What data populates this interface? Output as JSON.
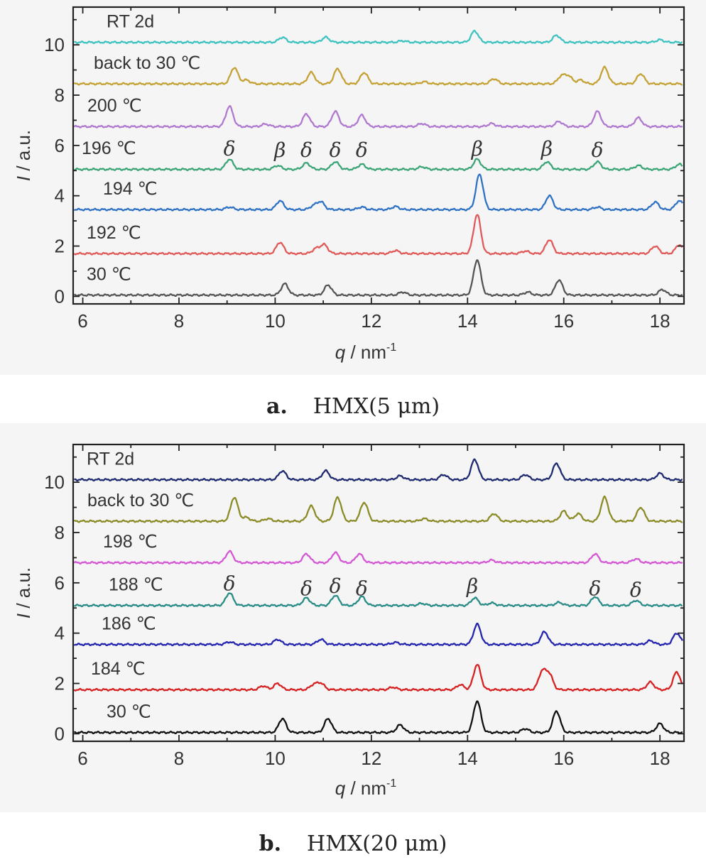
{
  "chart_data": [
    {
      "type": "line",
      "caption_letter": "a.",
      "caption_text": "HMX(5 μm)",
      "xlabel_var": "q",
      "xlabel_unit": " / nm",
      "xlabel_sup": "-1",
      "ylabel_var": "I",
      "ylabel_unit": " / a.u.",
      "xlim": [
        5.8,
        18.5
      ],
      "ylim": [
        -0.3,
        11.5
      ],
      "xticks": [
        6,
        8,
        10,
        12,
        14,
        16,
        18
      ],
      "yticks": [
        0,
        2,
        4,
        6,
        8,
        10
      ],
      "grid": false,
      "series": [
        {
          "name": "30 ℃",
          "color": "#555555",
          "offset": 0.05,
          "peaks": [
            [
              10.2,
              0.45
            ],
            [
              11.1,
              0.4
            ],
            [
              12.65,
              0.12
            ],
            [
              14.2,
              1.4
            ],
            [
              15.25,
              0.12
            ],
            [
              15.9,
              0.6
            ],
            [
              18.05,
              0.22
            ]
          ]
        },
        {
          "name": "192 ℃",
          "color": "#e05a5a",
          "offset": 1.7,
          "peaks": [
            [
              10.1,
              0.45
            ],
            [
              10.85,
              0.2
            ],
            [
              11.02,
              0.35
            ],
            [
              12.5,
              0.12
            ],
            [
              14.2,
              1.55
            ],
            [
              15.2,
              0.1
            ],
            [
              15.7,
              0.55
            ],
            [
              17.9,
              0.3
            ],
            [
              18.4,
              0.35
            ]
          ]
        },
        {
          "name": "194 ℃",
          "color": "#2f72c4",
          "offset": 3.45,
          "peaks": [
            [
              9.05,
              0.1
            ],
            [
              10.1,
              0.35
            ],
            [
              10.8,
              0.15
            ],
            [
              10.95,
              0.3
            ],
            [
              11.8,
              0.1
            ],
            [
              12.5,
              0.12
            ],
            [
              14.25,
              1.4
            ],
            [
              15.7,
              0.55
            ],
            [
              16.7,
              0.1
            ],
            [
              17.9,
              0.3
            ],
            [
              18.4,
              0.35
            ]
          ]
        },
        {
          "name": "196 ℃",
          "color": "#3ca577",
          "offset": 5.05,
          "peaks": [
            [
              9.05,
              0.4
            ],
            [
              10.05,
              0.15
            ],
            [
              10.65,
              0.25
            ],
            [
              11.25,
              0.3
            ],
            [
              11.8,
              0.2
            ],
            [
              13.05,
              0.1
            ],
            [
              14.2,
              0.4
            ],
            [
              15.65,
              0.3
            ],
            [
              16.7,
              0.3
            ],
            [
              17.55,
              0.15
            ],
            [
              18.4,
              0.2
            ]
          ]
        },
        {
          "name": "200 ℃",
          "color": "#b079d0",
          "offset": 6.75,
          "peaks": [
            [
              9.05,
              0.8
            ],
            [
              9.8,
              0.1
            ],
            [
              10.65,
              0.5
            ],
            [
              11.25,
              0.6
            ],
            [
              11.8,
              0.45
            ],
            [
              13.05,
              0.12
            ],
            [
              14.5,
              0.12
            ],
            [
              15.9,
              0.2
            ],
            [
              16.7,
              0.6
            ],
            [
              17.55,
              0.35
            ]
          ]
        },
        {
          "name": "back to 30 ℃",
          "color": "#c4a235",
          "offset": 8.45,
          "peaks": [
            [
              9.15,
              0.65
            ],
            [
              9.4,
              0.15
            ],
            [
              10.75,
              0.45
            ],
            [
              11.3,
              0.6
            ],
            [
              11.85,
              0.45
            ],
            [
              13.1,
              0.08
            ],
            [
              14.55,
              0.2
            ],
            [
              15.95,
              0.3
            ],
            [
              16.1,
              0.3
            ],
            [
              16.35,
              0.15
            ],
            [
              16.85,
              0.65
            ],
            [
              17.6,
              0.4
            ]
          ]
        },
        {
          "name": "RT 2d",
          "color": "#3fc2c2",
          "offset": 10.1,
          "peaks": [
            [
              10.15,
              0.2
            ],
            [
              11.05,
              0.2
            ],
            [
              12.65,
              0.06
            ],
            [
              14.15,
              0.45
            ],
            [
              15.85,
              0.28
            ],
            [
              18.0,
              0.1
            ]
          ]
        }
      ],
      "annotations": [
        {
          "text": "δ",
          "x": 9.05,
          "y": 5.6
        },
        {
          "text": "β",
          "x": 10.1,
          "y": 5.55
        },
        {
          "text": "δ",
          "x": 10.65,
          "y": 5.55
        },
        {
          "text": "δ",
          "x": 11.25,
          "y": 5.55
        },
        {
          "text": "δ",
          "x": 11.8,
          "y": 5.55
        },
        {
          "text": "β",
          "x": 14.2,
          "y": 5.6
        },
        {
          "text": "β",
          "x": 15.65,
          "y": 5.6
        },
        {
          "text": "δ",
          "x": 16.7,
          "y": 5.55
        }
      ]
    },
    {
      "type": "line",
      "caption_letter": "b.",
      "caption_text": "HMX(20 μm)",
      "xlabel_var": "q",
      "xlabel_unit": " / nm",
      "xlabel_sup": "-1",
      "ylabel_var": "I",
      "ylabel_unit": " / a.u.",
      "xlim": [
        5.8,
        18.5
      ],
      "ylim": [
        -0.3,
        11.5
      ],
      "xticks": [
        6,
        8,
        10,
        12,
        14,
        16,
        18
      ],
      "yticks": [
        0,
        2,
        4,
        6,
        8,
        10
      ],
      "grid": false,
      "series": [
        {
          "name": "30 ℃",
          "color": "#111111",
          "offset": 0.05,
          "peaks": [
            [
              10.15,
              0.55
            ],
            [
              11.1,
              0.55
            ],
            [
              12.6,
              0.3
            ],
            [
              14.2,
              1.25
            ],
            [
              15.2,
              0.15
            ],
            [
              15.85,
              0.85
            ],
            [
              18.0,
              0.35
            ]
          ]
        },
        {
          "name": "184 ℃",
          "color": "#d62222",
          "offset": 1.75,
          "peaks": [
            [
              9.75,
              0.15
            ],
            [
              10.05,
              0.25
            ],
            [
              10.8,
              0.2
            ],
            [
              10.95,
              0.25
            ],
            [
              12.45,
              0.1
            ],
            [
              13.85,
              0.2
            ],
            [
              14.2,
              1.0
            ],
            [
              15.55,
              0.7
            ],
            [
              15.7,
              0.6
            ],
            [
              17.8,
              0.3
            ],
            [
              18.35,
              0.7
            ]
          ]
        },
        {
          "name": "186 ℃",
          "color": "#2424b0",
          "offset": 3.55,
          "peaks": [
            [
              9.05,
              0.1
            ],
            [
              10.05,
              0.2
            ],
            [
              10.95,
              0.2
            ],
            [
              12.5,
              0.08
            ],
            [
              14.2,
              0.8
            ],
            [
              15.6,
              0.5
            ],
            [
              17.8,
              0.15
            ],
            [
              18.35,
              0.45
            ]
          ]
        },
        {
          "name": "188 ℃",
          "color": "#2a8c86",
          "offset": 5.1,
          "peaks": [
            [
              9.05,
              0.5
            ],
            [
              10.65,
              0.3
            ],
            [
              11.25,
              0.4
            ],
            [
              11.8,
              0.35
            ],
            [
              13.05,
              0.08
            ],
            [
              14.15,
              0.3
            ],
            [
              14.5,
              0.1
            ],
            [
              15.9,
              0.12
            ],
            [
              16.65,
              0.35
            ],
            [
              17.5,
              0.2
            ]
          ]
        },
        {
          "name": "198 ℃",
          "color": "#d457d4",
          "offset": 6.8,
          "peaks": [
            [
              9.05,
              0.45
            ],
            [
              10.65,
              0.35
            ],
            [
              11.25,
              0.4
            ],
            [
              11.75,
              0.35
            ],
            [
              14.5,
              0.1
            ],
            [
              16.65,
              0.35
            ],
            [
              17.5,
              0.15
            ]
          ]
        },
        {
          "name": "back to 30 ℃",
          "color": "#8b8b28",
          "offset": 8.45,
          "peaks": [
            [
              9.15,
              0.95
            ],
            [
              9.4,
              0.15
            ],
            [
              9.85,
              0.1
            ],
            [
              10.75,
              0.6
            ],
            [
              11.3,
              0.95
            ],
            [
              11.85,
              0.75
            ],
            [
              13.1,
              0.1
            ],
            [
              14.55,
              0.3
            ],
            [
              16.0,
              0.4
            ],
            [
              16.3,
              0.3
            ],
            [
              16.85,
              0.95
            ],
            [
              17.6,
              0.55
            ]
          ]
        },
        {
          "name": "RT 2d",
          "color": "#1f2a70",
          "offset": 10.1,
          "peaks": [
            [
              10.15,
              0.35
            ],
            [
              11.05,
              0.35
            ],
            [
              12.6,
              0.15
            ],
            [
              13.5,
              0.2
            ],
            [
              14.15,
              0.8
            ],
            [
              15.2,
              0.2
            ],
            [
              15.85,
              0.65
            ],
            [
              18.0,
              0.25
            ]
          ]
        }
      ],
      "annotations": [
        {
          "text": "δ",
          "x": 9.05,
          "y": 5.7
        },
        {
          "text": "δ",
          "x": 10.65,
          "y": 5.5
        },
        {
          "text": "δ",
          "x": 11.25,
          "y": 5.6
        },
        {
          "text": "δ",
          "x": 11.8,
          "y": 5.5
        },
        {
          "text": "β",
          "x": 14.1,
          "y": 5.6
        },
        {
          "text": "δ",
          "x": 16.65,
          "y": 5.5
        },
        {
          "text": "δ",
          "x": 17.5,
          "y": 5.45
        }
      ]
    }
  ]
}
